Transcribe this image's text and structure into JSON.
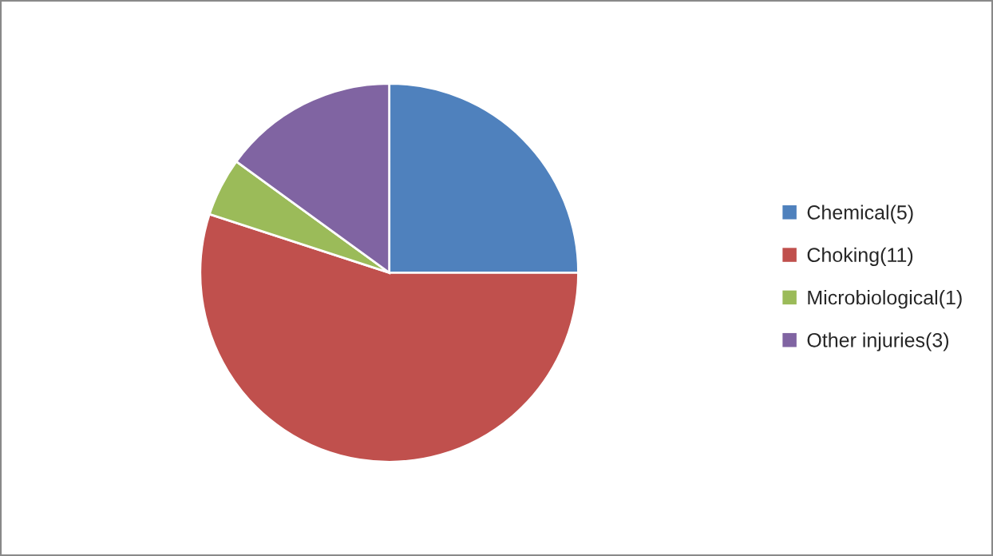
{
  "chart_data": {
    "type": "pie",
    "categories": [
      "Chemical(5)",
      "Choking(11)",
      "Microbiological(1)",
      "Other injuries(3)"
    ],
    "values": [
      5,
      11,
      1,
      3
    ],
    "colors": [
      "#4f81bd",
      "#c0504d",
      "#9bbb59",
      "#8064a2"
    ],
    "legend": "right"
  }
}
